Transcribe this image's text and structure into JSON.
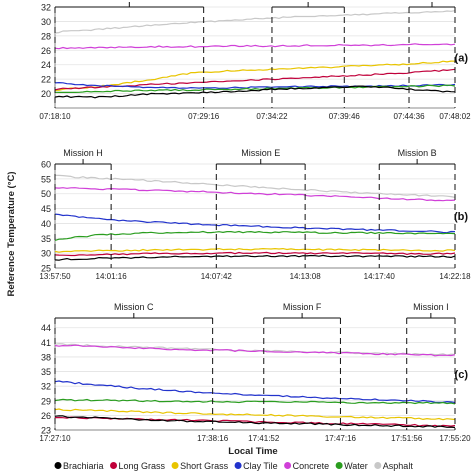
{
  "figure": {
    "ylabel": "Reference Temperature (°C)",
    "xlabel": "Local Time"
  },
  "legend": [
    {
      "name": "Brachiaria",
      "color": "#000000"
    },
    {
      "name": "Long Grass",
      "color": "#c0003a"
    },
    {
      "name": "Short Grass",
      "color": "#e8c400"
    },
    {
      "name": "Clay Tile",
      "color": "#2233cc"
    },
    {
      "name": "Concrete",
      "color": "#d040d8"
    },
    {
      "name": "Water",
      "color": "#2a9d1f"
    },
    {
      "name": "Asphalt",
      "color": "#c8c8c8"
    }
  ],
  "chart_data": [
    {
      "type": "line",
      "panel_label": "(a)",
      "ylim": [
        18,
        32
      ],
      "yticks": [
        20,
        22,
        24,
        26,
        28,
        30,
        32
      ],
      "xticks": [
        "07:18:10",
        "07:29:16",
        "07:34:22",
        "07:39:46",
        "07:44:36",
        "07:48:02"
      ],
      "missions": [
        {
          "name": "",
          "start": "07:18:10",
          "end": "07:29:16"
        },
        {
          "name": "",
          "start": "07:34:22",
          "end": "07:39:46"
        },
        {
          "name": "",
          "start": "07:44:36",
          "end": "07:48:02"
        }
      ],
      "series": [
        {
          "name": "Asphalt",
          "values": [
            28.5,
            28.9,
            29.4,
            29.8,
            30.2,
            30.5,
            30.8,
            31.0,
            31.2,
            31.5
          ]
        },
        {
          "name": "Concrete",
          "values": [
            26.3,
            26.4,
            26.5,
            26.5,
            26.6,
            26.6,
            26.7,
            26.7,
            26.8,
            26.8
          ]
        },
        {
          "name": "Short Grass",
          "values": [
            20.5,
            21.0,
            21.8,
            22.8,
            23.2,
            23.4,
            23.6,
            23.9,
            24.1,
            24.5
          ]
        },
        {
          "name": "Long Grass",
          "values": [
            20.6,
            20.9,
            21.2,
            21.5,
            21.8,
            22.0,
            22.3,
            22.6,
            22.9,
            23.3
          ]
        },
        {
          "name": "Clay Tile",
          "values": [
            21.5,
            21.1,
            20.9,
            20.8,
            20.8,
            20.9,
            21.0,
            21.0,
            21.1,
            21.2
          ]
        },
        {
          "name": "Water",
          "values": [
            20.2,
            20.3,
            20.4,
            20.5,
            20.6,
            20.7,
            20.8,
            20.9,
            21.0,
            21.1
          ]
        },
        {
          "name": "Brachiaria",
          "values": [
            19.6,
            19.5,
            19.9,
            20.1,
            20.3,
            20.6,
            20.8,
            21.0,
            20.6,
            20.2
          ]
        }
      ]
    },
    {
      "type": "line",
      "panel_label": "(b)",
      "ylim": [
        25,
        60
      ],
      "yticks": [
        25,
        30,
        35,
        40,
        45,
        50,
        55,
        60
      ],
      "xticks": [
        "13:57:50",
        "14:01:16",
        "14:07:42",
        "14:13:08",
        "14:17:40",
        "14:22:18"
      ],
      "missions": [
        {
          "name": "Mission H",
          "start": "13:57:50",
          "end": "14:01:16"
        },
        {
          "name": "Mission E",
          "start": "14:07:42",
          "end": "14:13:08"
        },
        {
          "name": "Mission B",
          "start": "14:17:40",
          "end": "14:22:18"
        }
      ],
      "series": [
        {
          "name": "Asphalt",
          "values": [
            56.0,
            55.2,
            54.5,
            53.6,
            52.7,
            51.8,
            51.0,
            50.2,
            49.6,
            48.9
          ]
        },
        {
          "name": "Concrete",
          "values": [
            52.0,
            51.6,
            51.2,
            50.8,
            50.3,
            49.8,
            49.3,
            48.7,
            48.1,
            47.6
          ]
        },
        {
          "name": "Clay Tile",
          "values": [
            43.0,
            41.5,
            40.6,
            39.9,
            39.3,
            38.8,
            38.3,
            37.9,
            37.5,
            37.0
          ]
        },
        {
          "name": "Water",
          "values": [
            34.5,
            36.2,
            36.8,
            37.0,
            37.1,
            37.0,
            36.9,
            36.8,
            36.7,
            36.6
          ]
        },
        {
          "name": "Short Grass",
          "values": [
            30.5,
            30.8,
            31.0,
            31.2,
            31.3,
            31.3,
            31.2,
            31.1,
            31.0,
            30.9
          ]
        },
        {
          "name": "Long Grass",
          "values": [
            29.2,
            29.6,
            29.8,
            29.9,
            30.0,
            30.0,
            29.9,
            29.9,
            29.8,
            29.8
          ]
        },
        {
          "name": "Brachiaria",
          "values": [
            27.8,
            28.3,
            28.6,
            28.8,
            28.9,
            29.0,
            29.0,
            28.9,
            28.9,
            28.8
          ]
        }
      ]
    },
    {
      "type": "line",
      "panel_label": "(c)",
      "ylim": [
        23,
        46
      ],
      "yticks": [
        23,
        26,
        29,
        32,
        35,
        38,
        41,
        44
      ],
      "xticks": [
        "17:27:10",
        "17:38:16",
        "17:41:52",
        "17:47:16",
        "17:51:56",
        "17:55:20"
      ],
      "missions": [
        {
          "name": "Mission C",
          "start": "17:27:10",
          "end": "17:38:16"
        },
        {
          "name": "Mission F",
          "start": "17:41:52",
          "end": "17:47:16"
        },
        {
          "name": "Mission I",
          "start": "17:51:56",
          "end": "17:55:20"
        }
      ],
      "series": [
        {
          "name": "Asphalt",
          "values": [
            40.6,
            40.3,
            40.0,
            39.7,
            39.4,
            39.2,
            39.0,
            38.8,
            38.6,
            38.5
          ]
        },
        {
          "name": "Concrete",
          "values": [
            40.4,
            40.1,
            39.8,
            39.5,
            39.3,
            39.1,
            38.9,
            38.7,
            38.5,
            38.3
          ]
        },
        {
          "name": "Clay Tile",
          "values": [
            33.0,
            32.2,
            31.5,
            30.9,
            30.4,
            30.0,
            29.6,
            29.3,
            29.0,
            28.7
          ]
        },
        {
          "name": "Water",
          "values": [
            29.2,
            29.1,
            29.0,
            28.9,
            28.8,
            28.8,
            28.7,
            28.6,
            28.6,
            28.5
          ]
        },
        {
          "name": "Short Grass",
          "values": [
            27.2,
            27.0,
            26.7,
            26.4,
            26.2,
            26.0,
            25.8,
            25.6,
            25.4,
            25.2
          ]
        },
        {
          "name": "Long Grass",
          "values": [
            25.6,
            25.4,
            25.2,
            25.0,
            24.8,
            24.6,
            24.4,
            24.2,
            24.0,
            23.8
          ]
        },
        {
          "name": "Brachiaria",
          "values": [
            25.8,
            25.5,
            25.1,
            24.8,
            24.6,
            24.4,
            24.2,
            24.0,
            23.8,
            23.6
          ]
        }
      ]
    }
  ]
}
